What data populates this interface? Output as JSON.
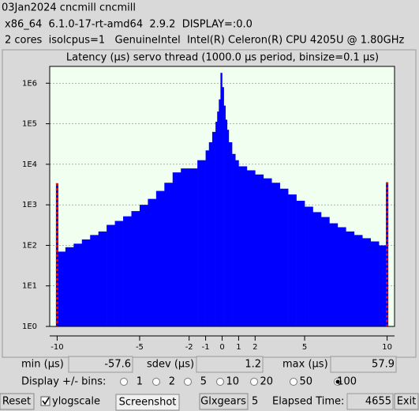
{
  "header": {
    "line1": "03Jan2024 cncmill cncmill",
    "line2": "x86_64  6.1.0-17-rt-amd64  2.9.2  DISPLAY=:0.0",
    "line3": "2 cores  isolcpus=1   GenuineIntel  Intel(R) Celeron(R) CPU 4205U @ 1.80GHz"
  },
  "chart_data": {
    "type": "histogram",
    "title": "Latency (µs) servo thread (1000.0 µs period, binsize=0.1 µs)",
    "bins": [
      -10,
      -9.5,
      -9,
      -8.5,
      -8,
      -7.5,
      -7,
      -6.5,
      -6,
      -5.5,
      -5,
      -4.5,
      -4,
      -3.5,
      -3,
      -2.5,
      -2,
      -1.5,
      -1,
      -0.8,
      -0.6,
      -0.4,
      -0.3,
      -0.2,
      -0.1,
      0,
      0.1,
      0.2,
      0.3,
      0.4,
      0.6,
      0.8,
      1,
      1.5,
      2,
      2.5,
      3,
      3.5,
      4,
      4.5,
      5,
      5.5,
      6,
      6.5,
      7,
      7.5,
      8,
      8.5,
      9,
      9.5,
      10
    ],
    "values": [
      70,
      90,
      110,
      140,
      180,
      220,
      320,
      400,
      520,
      700,
      1000,
      1400,
      2200,
      3500,
      6300,
      7900,
      7900,
      12600,
      22000,
      35000,
      63000,
      112000,
      200000,
      400000,
      1800000,
      800000,
      280000,
      126000,
      71000,
      35000,
      18000,
      12600,
      8900,
      7100,
      5600,
      4500,
      3500,
      2500,
      1800,
      1260,
      900,
      660,
      500,
      350,
      280,
      220,
      180,
      150,
      125,
      100
    ],
    "color": "#0000ff",
    "overflow_values": [
      3400,
      3600
    ],
    "overflow_color": "#ff0000",
    "xlim": [
      -10.45,
      10.45
    ],
    "xticks": [
      -10,
      -5,
      -2,
      -1,
      0,
      1,
      2,
      5,
      10
    ],
    "ylim": [
      1,
      2600000
    ],
    "log_y": true,
    "yticks": [
      {
        "value": 1,
        "label": "1E0"
      },
      {
        "value": 10,
        "label": "1E1"
      },
      {
        "value": 100,
        "label": "1E2"
      },
      {
        "value": 1000,
        "label": "1E3"
      },
      {
        "value": 10000,
        "label": "1E4"
      },
      {
        "value": 100000,
        "label": "1E5"
      },
      {
        "value": 1000000,
        "label": "1E6"
      }
    ],
    "grid": true,
    "plot_background": "#f0fff0"
  },
  "stats": {
    "min_label": "min (µs)",
    "min": -57.6,
    "sdev_label": "sdev (µs)",
    "sdev": 1.2,
    "max_label": "max (µs)",
    "max": 57.9
  },
  "bins_control": {
    "label": "Display +/- bins:",
    "options": [
      1,
      2,
      5,
      10,
      20,
      50,
      100
    ],
    "selected": 6
  },
  "footer": {
    "reset": "Reset",
    "ylogscale": "ylogscale",
    "ylogscale_checked": true,
    "screenshot": "Screenshot",
    "glxgears": "Glxgears",
    "glxgears_count": 5,
    "elapsed_label": "Elapsed Time:",
    "elapsed": 4655,
    "exit": "Exit"
  }
}
